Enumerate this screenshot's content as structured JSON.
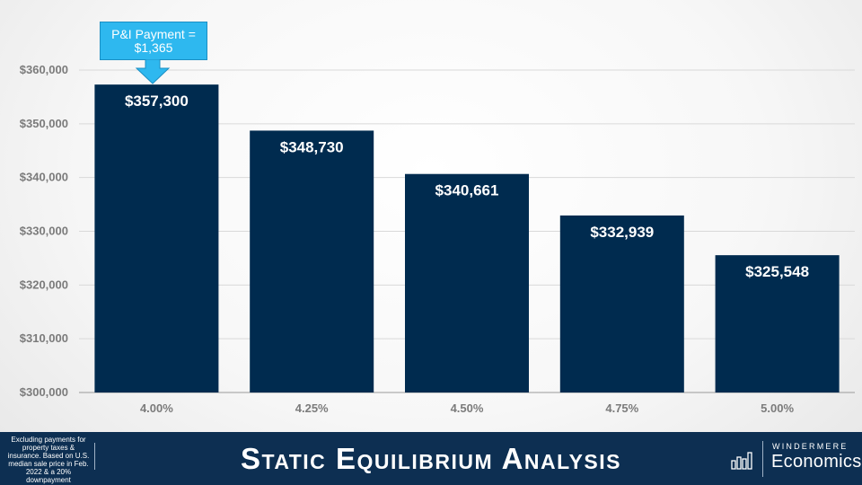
{
  "chart_data": {
    "type": "bar",
    "categories": [
      "4.00%",
      "4.25%",
      "4.50%",
      "4.75%",
      "5.00%"
    ],
    "values": [
      357300,
      348730,
      340661,
      332939,
      325548
    ],
    "data_labels": [
      "$357,300",
      "$348,730",
      "$340,661",
      "$332,939",
      "$325,548"
    ],
    "ylim": [
      300000,
      360000
    ],
    "yticks": [
      300000,
      310000,
      320000,
      330000,
      340000,
      350000,
      360000
    ],
    "ytick_labels": [
      "$300,000",
      "$310,000",
      "$320,000",
      "$330,000",
      "$340,000",
      "$350,000",
      "$360,000"
    ],
    "grid": true,
    "bar_color": "#002b4f",
    "annotation": {
      "line1": "P&I Payment =",
      "line2": "$1,365",
      "target_category": "4.00%",
      "color": "#2eb8ef"
    }
  },
  "footer": {
    "footnote": "Excluding payments for property taxes & insurance. Based on U.S. median sale price in Feb. 2022 & a 20% downpayment",
    "title": "Static Equilibrium Analysis",
    "logo_top": "WINDERMERE",
    "logo_bottom": "Economics",
    "background": "#0d2f52"
  }
}
